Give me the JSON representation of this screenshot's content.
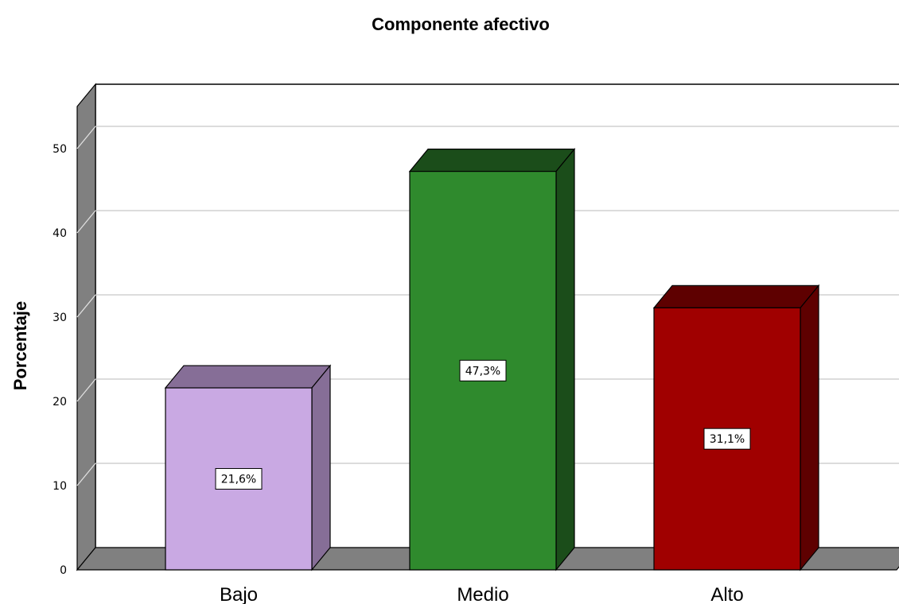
{
  "chart_data": {
    "type": "bar",
    "title": "Componente afectivo",
    "ylabel": "Porcentaje",
    "xlabel": "",
    "categories": [
      "Bajo",
      "Medio",
      "Alto"
    ],
    "values": [
      21.6,
      47.3,
      31.1
    ],
    "data_labels": [
      "21,6%",
      "47,3%",
      "31,1%"
    ],
    "yticks": [
      0,
      10,
      20,
      30,
      40,
      50
    ],
    "ylim": [
      0,
      55
    ],
    "grid": true,
    "three_d": true,
    "colors": {
      "bars": [
        "#c9a9e3",
        "#2f8a2d",
        "#a00000"
      ],
      "bars_side": [
        "#866e97",
        "#1b4d1a",
        "#5e0000"
      ],
      "bars_top": [
        "#866e97",
        "#1b4d1a",
        "#5e0000"
      ],
      "wall": "#808080",
      "gridline": "#c8c8c8",
      "outline": "#000000"
    }
  }
}
